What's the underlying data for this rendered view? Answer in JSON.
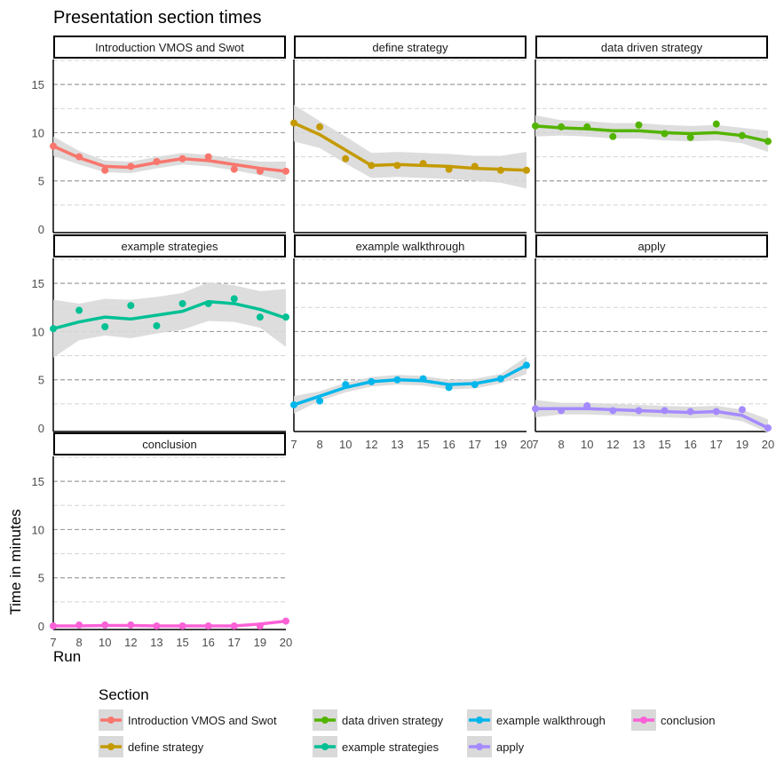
{
  "chart_data": {
    "type": "line",
    "title": "Presentation section times",
    "xlabel": "Run",
    "ylabel": "Time in minutes",
    "x_categories": [
      "7",
      "8",
      "10",
      "12",
      "13",
      "15",
      "16",
      "17",
      "19",
      "20"
    ],
    "yticks": [
      0,
      5,
      10,
      15
    ],
    "ylim": [
      0,
      17.5
    ],
    "legend_title": "Section",
    "legend_position": "bottom",
    "series": [
      {
        "name": "Introduction VMOS and Swot",
        "color": "#f8766d",
        "points": [
          8.6,
          7.5,
          6.1,
          6.5,
          7.0,
          7.3,
          7.5,
          6.2,
          6.0,
          6.0
        ],
        "smooth": [
          8.6,
          7.4,
          6.5,
          6.4,
          6.9,
          7.3,
          7.1,
          6.7,
          6.3,
          6.0
        ],
        "band": [
          1.0,
          0.7,
          0.6,
          0.6,
          0.6,
          0.6,
          0.6,
          0.6,
          0.7,
          1.0
        ]
      },
      {
        "name": "define strategy",
        "color": "#c49a00",
        "points": [
          11.0,
          10.6,
          7.3,
          6.6,
          6.6,
          6.8,
          6.2,
          6.5,
          6.1,
          6.1
        ],
        "smooth": [
          11.0,
          9.8,
          8.2,
          6.6,
          6.7,
          6.6,
          6.5,
          6.3,
          6.2,
          6.1
        ],
        "band": [
          1.9,
          1.4,
          1.4,
          1.3,
          1.3,
          1.3,
          1.3,
          1.3,
          1.4,
          1.9
        ]
      },
      {
        "name": "data driven strategy",
        "color": "#53b400",
        "points": [
          10.7,
          10.6,
          10.6,
          9.6,
          10.8,
          9.9,
          9.5,
          10.9,
          9.7,
          9.1
        ],
        "smooth": [
          10.7,
          10.5,
          10.4,
          10.2,
          10.2,
          10.0,
          9.9,
          10.0,
          9.7,
          9.1
        ],
        "band": [
          1.1,
          0.8,
          0.8,
          0.8,
          0.8,
          0.8,
          0.8,
          0.8,
          0.8,
          1.1
        ]
      },
      {
        "name": "example strategies",
        "color": "#00c094",
        "points": [
          10.3,
          12.2,
          10.5,
          12.7,
          10.6,
          12.9,
          12.9,
          13.4,
          11.5,
          11.5
        ],
        "smooth": [
          10.3,
          11.0,
          11.5,
          11.3,
          11.7,
          12.1,
          13.1,
          12.9,
          12.3,
          11.4
        ],
        "band": [
          3.0,
          1.9,
          1.9,
          2.0,
          1.9,
          1.9,
          2.0,
          1.9,
          1.9,
          3.0
        ]
      },
      {
        "name": "example walkthrough",
        "color": "#00b6eb",
        "points": [
          2.4,
          2.8,
          4.5,
          4.8,
          5.0,
          5.1,
          4.2,
          4.5,
          5.1,
          6.5
        ],
        "smooth": [
          2.4,
          3.3,
          4.2,
          4.8,
          5.0,
          4.9,
          4.5,
          4.6,
          5.1,
          6.5
        ],
        "band": [
          0.9,
          0.5,
          0.5,
          0.5,
          0.5,
          0.5,
          0.5,
          0.5,
          0.5,
          0.9
        ]
      },
      {
        "name": "apply",
        "color": "#a58aff",
        "points": [
          2.0,
          1.8,
          2.3,
          1.8,
          1.8,
          1.8,
          1.7,
          1.7,
          1.9,
          0.0
        ],
        "smooth": [
          2.0,
          2.0,
          2.0,
          1.9,
          1.8,
          1.7,
          1.6,
          1.7,
          1.3,
          0.0
        ],
        "band": [
          0.9,
          0.6,
          0.6,
          0.6,
          0.6,
          0.6,
          0.6,
          0.6,
          0.6,
          0.9
        ]
      },
      {
        "name": "conclusion",
        "color": "#fb61d7",
        "points": [
          0.0,
          0.1,
          0.1,
          0.1,
          0.0,
          0.0,
          0.0,
          0.0,
          0.0,
          0.5
        ],
        "smooth": [
          0.0,
          0.0,
          0.05,
          0.05,
          0.0,
          0.0,
          0.0,
          0.0,
          0.2,
          0.5
        ],
        "band": [
          0.1,
          0.05,
          0.05,
          0.05,
          0.05,
          0.05,
          0.05,
          0.05,
          0.05,
          0.1
        ]
      }
    ]
  }
}
